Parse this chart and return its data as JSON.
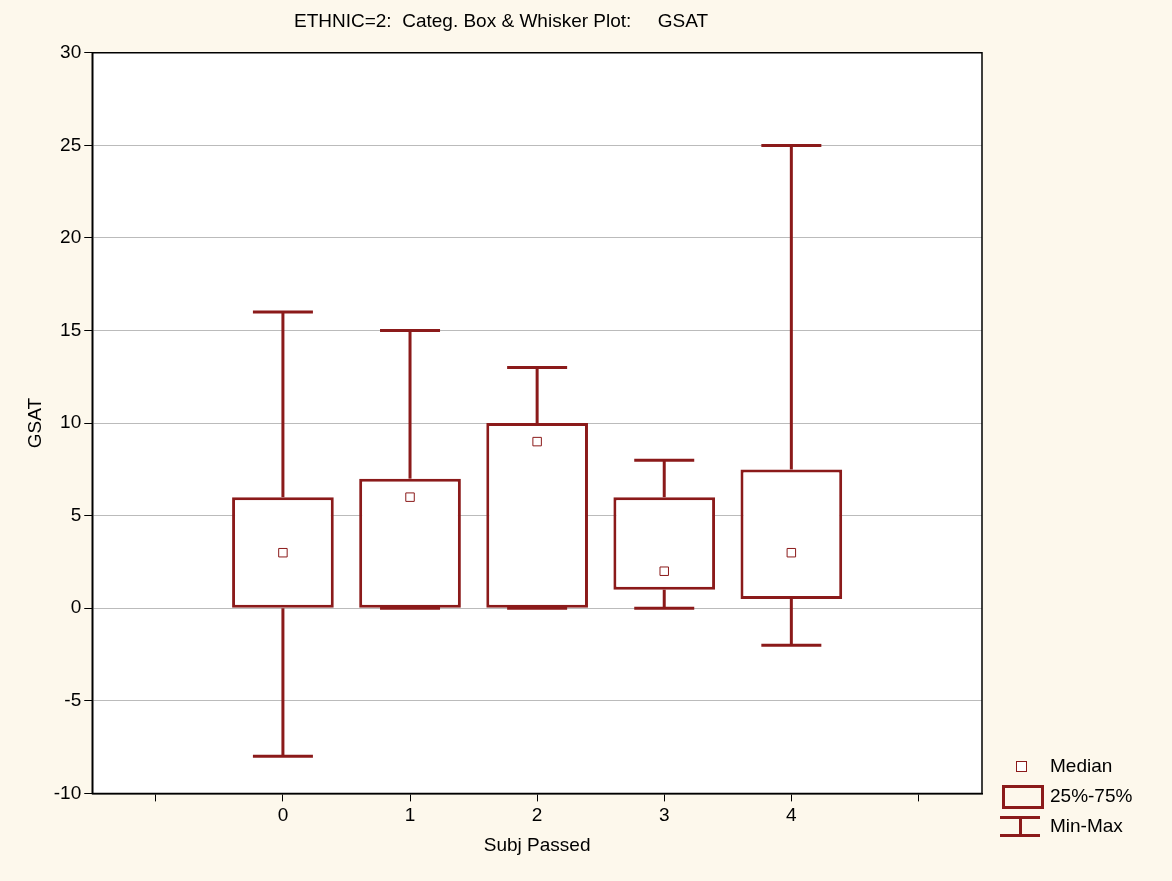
{
  "chart_data": {
    "type": "box",
    "title": "ETHNIC=2:  Categ. Box & Whisker Plot:     GSAT",
    "xlabel": "Subj Passed",
    "ylabel": "GSAT",
    "categories": [
      null,
      "0",
      "1",
      "2",
      "3",
      "4",
      null
    ],
    "color": "#8b1a1a",
    "boxes": [
      null,
      {
        "low": -8,
        "q1": 0,
        "median": 3,
        "q3": 6,
        "high": 16
      },
      {
        "low": 0,
        "q1": 0,
        "median": 6,
        "q3": 7,
        "high": 15
      },
      {
        "low": 0,
        "q1": 0,
        "median": 9,
        "q3": 10,
        "high": 13
      },
      {
        "low": 0,
        "q1": 1,
        "median": 2,
        "q3": 6,
        "high": 8
      },
      {
        "low": -2,
        "q1": 0.5,
        "median": 3,
        "q3": 7.5,
        "high": 25
      },
      null
    ],
    "ylim": [
      -10,
      30
    ],
    "yticks": [
      -10,
      -5,
      0,
      5,
      10,
      15,
      20,
      25,
      30
    ],
    "grid": "y",
    "marker": "square",
    "annotations": [
      "Median",
      "25%-75%",
      "Min-Max"
    ]
  }
}
